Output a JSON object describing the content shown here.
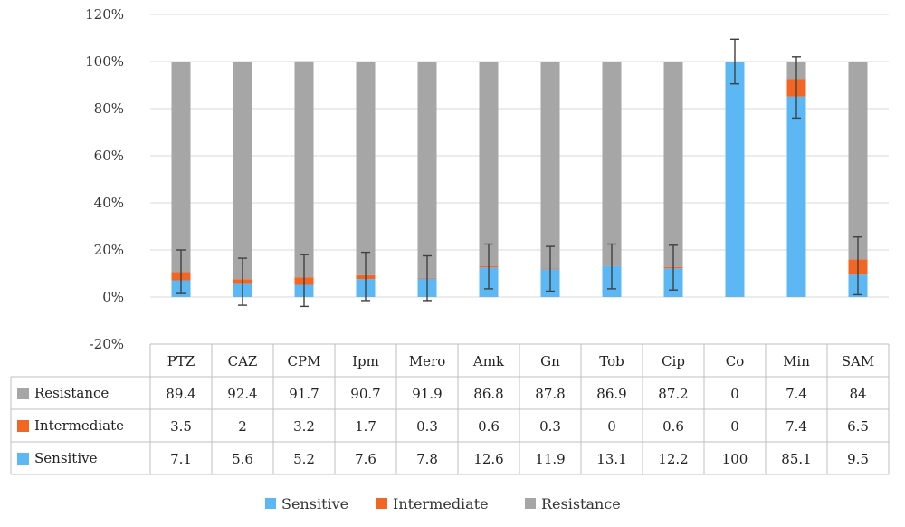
{
  "chart_data": {
    "type": "bar",
    "stacked": true,
    "categories": [
      "PTZ",
      "CAZ",
      "CPM",
      "Ipm",
      "Mero",
      "Amk",
      "Gn",
      "Tob",
      "Cip",
      "Co",
      "Min",
      "SAM"
    ],
    "series": [
      {
        "name": "Sensitive",
        "color": "#5bb8f5",
        "values": [
          7.1,
          5.6,
          5.2,
          7.6,
          7.8,
          12.6,
          11.9,
          13.1,
          12.2,
          100,
          85.1,
          9.5
        ]
      },
      {
        "name": "Intermediate",
        "color": "#f26522",
        "values": [
          3.5,
          2,
          3.2,
          1.7,
          0.3,
          0.6,
          0.3,
          0,
          0.6,
          0,
          7.4,
          6.5
        ]
      },
      {
        "name": "Resistance",
        "color": "#a6a6a6",
        "values": [
          89.4,
          92.4,
          91.7,
          90.7,
          91.9,
          86.8,
          87.8,
          86.9,
          87.2,
          0,
          7.4,
          84
        ]
      }
    ],
    "table_rows": [
      {
        "name": "Resistance",
        "values": [
          "89.4",
          "92.4",
          "91.7",
          "90.7",
          "91.9",
          "86.8",
          "87.8",
          "86.9",
          "87.2",
          "0",
          "7.4",
          "84"
        ]
      },
      {
        "name": "Intermediate",
        "values": [
          "3.5",
          "2",
          "3.2",
          "1.7",
          "0.3",
          "0.6",
          "0.3",
          "0",
          "0.6",
          "0",
          "7.4",
          "6.5"
        ]
      },
      {
        "name": "Sensitive",
        "values": [
          "7.1",
          "5.6",
          "5.2",
          "7.6",
          "7.8",
          "12.6",
          "11.9",
          "13.1",
          "12.2",
          "100",
          "85.1",
          "9.5"
        ]
      }
    ],
    "error_bars": [
      {
        "center": 10.6,
        "low": 1.5,
        "high": 20
      },
      {
        "center": 7.6,
        "low": -3.5,
        "high": 16.5
      },
      {
        "center": 8.4,
        "low": -4,
        "high": 18
      },
      {
        "center": 9.3,
        "low": -1.5,
        "high": 19
      },
      {
        "center": 8.1,
        "low": -1.5,
        "high": 17.5
      },
      {
        "center": 13.2,
        "low": 3.5,
        "high": 22.5
      },
      {
        "center": 12.2,
        "low": 2.5,
        "high": 21.5
      },
      {
        "center": 13.1,
        "low": 3.5,
        "high": 22.5
      },
      {
        "center": 12.8,
        "low": 3,
        "high": 22
      },
      {
        "center": 100,
        "low": 90.5,
        "high": 109.5
      },
      {
        "center": 92.5,
        "low": 76,
        "high": 102
      },
      {
        "center": 16,
        "low": 1,
        "high": 25.5
      }
    ],
    "y_ticks": [
      -20,
      0,
      20,
      40,
      60,
      80,
      100,
      120
    ],
    "y_tick_labels": [
      "-20%",
      "0%",
      "20%",
      "40%",
      "60%",
      "80%",
      "100%",
      "120%"
    ],
    "ylim": [
      -20,
      120
    ],
    "grid": true,
    "legend_position": "bottom",
    "legend": [
      "Sensitive",
      "Intermediate",
      "Resistance"
    ],
    "data_table": true,
    "title": "",
    "xlabel": "",
    "ylabel": ""
  }
}
